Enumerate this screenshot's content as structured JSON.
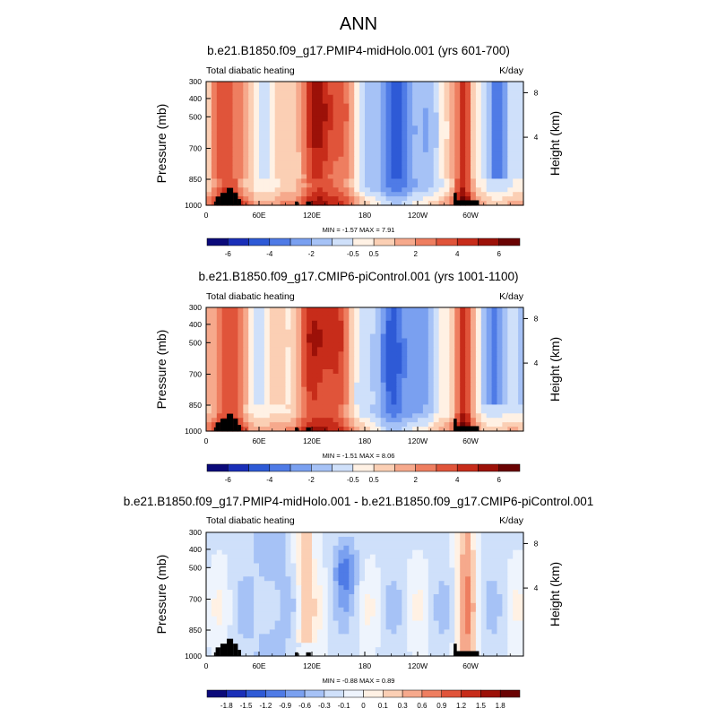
{
  "figure": {
    "title": "ANN"
  },
  "chart_data": [
    {
      "type": "heatmap",
      "title": "b.e21.B1850.f09_g17.PMIP4-midHolo.001 (yrs 601-700)",
      "left_label": "Total diabatic heating",
      "right_label": "K/day",
      "ylabel": "Pressure (mb)",
      "ylabel_right": "Height (km)",
      "x_ticks": [
        "0",
        "60E",
        "120E",
        "180",
        "120W",
        "60W"
      ],
      "y_ticks": [
        "300",
        "400",
        "500",
        "700",
        "850",
        "1000"
      ],
      "y_right_ticks": [
        "8",
        "4"
      ],
      "stats": "MIN =  -1.57  MAX =   7.91",
      "colorbar_labels": [
        "-6",
        "-4",
        "-2",
        "-0.5",
        "0.5",
        "2",
        "4",
        "6"
      ],
      "value_range": [
        -1.57,
        7.91
      ]
    },
    {
      "type": "heatmap",
      "title": "b.e21.B1850.f09_g17.CMIP6-piControl.001 (yrs 1001-1100)",
      "left_label": "Total diabatic heating",
      "right_label": "K/day",
      "ylabel": "Pressure (mb)",
      "ylabel_right": "Height (km)",
      "x_ticks": [
        "0",
        "60E",
        "120E",
        "180",
        "120W",
        "60W"
      ],
      "y_ticks": [
        "300",
        "400",
        "500",
        "700",
        "850",
        "1000"
      ],
      "y_right_ticks": [
        "8",
        "4"
      ],
      "stats": "MIN =  -1.51  MAX =   8.06",
      "colorbar_labels": [
        "-6",
        "-4",
        "-2",
        "-0.5",
        "0.5",
        "2",
        "4",
        "6"
      ],
      "value_range": [
        -1.51,
        8.06
      ]
    },
    {
      "type": "heatmap",
      "title": "b.e21.B1850.f09_g17.PMIP4-midHolo.001 - b.e21.B1850.f09_g17.CMIP6-piControl.001",
      "left_label": "Total diabatic heating",
      "right_label": "K/day",
      "ylabel": "Pressure (mb)",
      "ylabel_right": "Height (km)",
      "x_ticks": [
        "0",
        "60E",
        "120E",
        "180",
        "120W",
        "60W"
      ],
      "y_ticks": [
        "300",
        "400",
        "500",
        "700",
        "850",
        "1000"
      ],
      "y_right_ticks": [
        "8",
        "4"
      ],
      "stats": "MIN =  -0.88  MAX =   0.89",
      "colorbar_labels": [
        "-1.8",
        "-1.5",
        "-1.2",
        "-0.9",
        "-0.6",
        "-0.3",
        "-0.1",
        "0",
        "0.1",
        "0.3",
        "0.6",
        "0.9",
        "1.2",
        "1.5",
        "1.8"
      ],
      "value_range": [
        -0.88,
        0.89
      ]
    }
  ],
  "colors": {
    "colorbar_abs": [
      "#0b0a7a",
      "#1a2fb8",
      "#2e5ad6",
      "#4f7be6",
      "#7aa0f0",
      "#a6c2f6",
      "#cfe0fa",
      "#fff1e4",
      "#fbcfb4",
      "#f6a98c",
      "#ee7e60",
      "#e0543a",
      "#c72c1a",
      "#9c1108",
      "#6a0303"
    ],
    "colorbar_diff": [
      "#0b0a7a",
      "#1a2fb8",
      "#2e5ad6",
      "#4f7be6",
      "#7aa0f0",
      "#a6c2f6",
      "#cfe0fa",
      "#eef4fd",
      "#fff1e4",
      "#fbcfb4",
      "#f6a98c",
      "#ee7e60",
      "#e0543a",
      "#c72c1a",
      "#9c1108",
      "#6a0303"
    ],
    "topography": "#000000"
  }
}
